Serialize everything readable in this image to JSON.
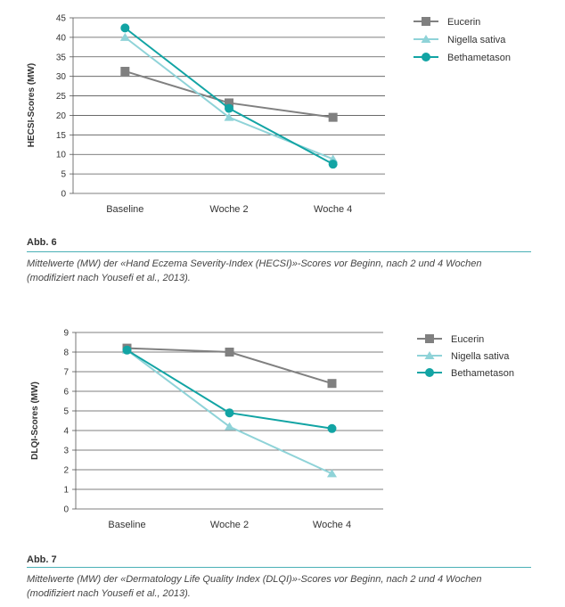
{
  "colors": {
    "eucerin": "#808080",
    "nigella": "#8fd3d8",
    "betha": "#12a4a4",
    "grid": "#555555",
    "rule": "#4ab0b6"
  },
  "figure1": {
    "label": "Abb. 6",
    "caption_line1": "Mittelwerte (MW) der «Hand Eczema Severity-Index (HECSI)»-Scores vor Beginn, nach 2 und 4 Wochen",
    "caption_line2": "(modifiziert nach Yousefi et al., 2013)."
  },
  "figure2": {
    "label": "Abb. 7",
    "caption_line1": "Mittelwerte (MW) der «Dermatology Life Quality Index (DLQI)»-Scores vor Beginn, nach 2 und 4 Wochen",
    "caption_line2": "(modifiziert nach Yousefi et al., 2013)."
  },
  "chart_data": [
    {
      "type": "line",
      "title": "",
      "xlabel": "",
      "ylabel": "HECSI-Scores (MW)",
      "categories": [
        "Baseline",
        "Woche 2",
        "Woche 4"
      ],
      "ylim": [
        0,
        45
      ],
      "yticks": [
        0,
        5,
        10,
        15,
        20,
        25,
        30,
        35,
        40,
        45
      ],
      "grid": true,
      "legend_position": "top-right",
      "series": [
        {
          "name": "Eucerin",
          "values": [
            31.3,
            23.2,
            19.5
          ],
          "marker": "square",
          "color": "#808080"
        },
        {
          "name": "Nigella sativa",
          "values": [
            40.0,
            19.5,
            8.8
          ],
          "marker": "triangle",
          "color": "#8fd3d8"
        },
        {
          "name": "Bethametason",
          "values": [
            42.4,
            21.8,
            7.5
          ],
          "marker": "circle",
          "color": "#12a4a4"
        }
      ]
    },
    {
      "type": "line",
      "title": "",
      "xlabel": "",
      "ylabel": "DLQI-Scores (MW)",
      "categories": [
        "Baseline",
        "Woche 2",
        "Woche 4"
      ],
      "ylim": [
        0,
        9
      ],
      "yticks": [
        0,
        1,
        2,
        3,
        4,
        5,
        6,
        7,
        8,
        9
      ],
      "grid": true,
      "legend_position": "top-right",
      "series": [
        {
          "name": "Eucerin",
          "values": [
            8.2,
            8.0,
            6.4
          ],
          "marker": "square",
          "color": "#808080"
        },
        {
          "name": "Nigella sativa",
          "values": [
            8.1,
            4.2,
            1.8
          ],
          "marker": "triangle",
          "color": "#8fd3d8"
        },
        {
          "name": "Bethametason",
          "values": [
            8.1,
            4.9,
            4.1
          ],
          "marker": "circle",
          "color": "#12a4a4"
        }
      ]
    }
  ]
}
